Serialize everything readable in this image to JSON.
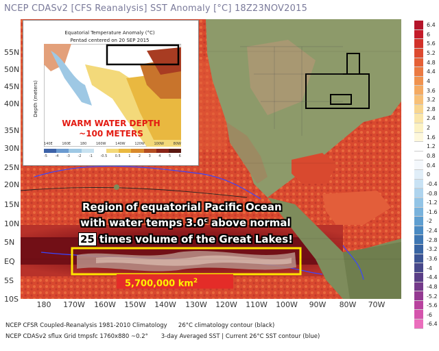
{
  "header": {
    "title": "NCEP CDASv2 [CFS Reanalysis] SST Anomaly [°C] 18Z23NOV2015"
  },
  "map": {
    "lat_labels": [
      "55N",
      "50N",
      "45N",
      "40N",
      "35N",
      "30N",
      "25N",
      "20N",
      "15N",
      "10N",
      "5N",
      "EQ",
      "5S",
      "10S"
    ],
    "lon_labels": [
      "180",
      "170W",
      "160W",
      "150W",
      "140W",
      "130W",
      "120W",
      "110W",
      "100W",
      "90W",
      "80W",
      "70W"
    ]
  },
  "colorbar": {
    "labels": [
      "6.4",
      "6",
      "5.6",
      "5.2",
      "4.8",
      "4.4",
      "4",
      "3.6",
      "3.2",
      "2.8",
      "2.4",
      "2",
      "1.6",
      "1.2",
      "0.8",
      "0.4",
      "0",
      "-0.4",
      "-0.8",
      "-1.2",
      "-1.6",
      "-2",
      "-2.4",
      "-2.8",
      "-3.2",
      "-3.6",
      "-4",
      "-4.4",
      "-4.8",
      "-5.2",
      "-5.6",
      "-6",
      "-6.4"
    ],
    "colors": [
      "#b4142a",
      "#c41c2a",
      "#d2322a",
      "#dd4a30",
      "#e56036",
      "#eb7a42",
      "#f0924e",
      "#f4aa62",
      "#f7c078",
      "#f8d690",
      "#fae6aa",
      "#fcf2c4",
      "#fef8dc",
      "#ffffff",
      "#ffffff",
      "#f4f8fc",
      "#e0eef8",
      "#c8e2f4",
      "#aed4ee",
      "#92c4e6",
      "#78b2dc",
      "#5e9ed0",
      "#4a8ac2",
      "#3e76b2",
      "#3864a2",
      "#3c5494",
      "#48488a",
      "#5a3e86",
      "#743a8a",
      "#943a92",
      "#b8429e",
      "#d454ac",
      "#ea6ebc"
    ]
  },
  "inset": {
    "title": "Equatorial Temperature Anomaly (°C)",
    "subtitle": "Pentad centered on 20 SEP 2015",
    "y_label": "Depth (meters)",
    "x_ticks": [
      "140E",
      "160E",
      "180",
      "160W",
      "140W",
      "120W",
      "100W",
      "80W"
    ],
    "cbar_ticks": [
      "-5",
      "-4",
      "-3",
      "-2",
      "-1",
      "-0.5",
      "0.5",
      "1",
      "2",
      "3",
      "4",
      "5",
      "6"
    ],
    "callout_line1": "WARM WATER DEPTH",
    "callout_line2": "~100 METERS"
  },
  "annotation": {
    "line1": "Region of equatorial Pacific Ocean",
    "line2": "with water temps 3.0",
    "line2_sup": "c",
    "line2_tail": " above normal",
    "line3_num": "25",
    "line3_rest": "times volume of the Great Lakes!",
    "area_text": "5,700,000 km",
    "area_sup": "2"
  },
  "footer": {
    "line1": "NCEP CFSR Coupled-Reanalysis 1981-2010 Climatology      26°C climatology contour (black)",
    "line2": "NCEP CDASv2 sflux Grid tmpsfc 1760x880 ~0.2°       3-day Averaged SST | Current 26°C SST contour (blue)"
  }
}
